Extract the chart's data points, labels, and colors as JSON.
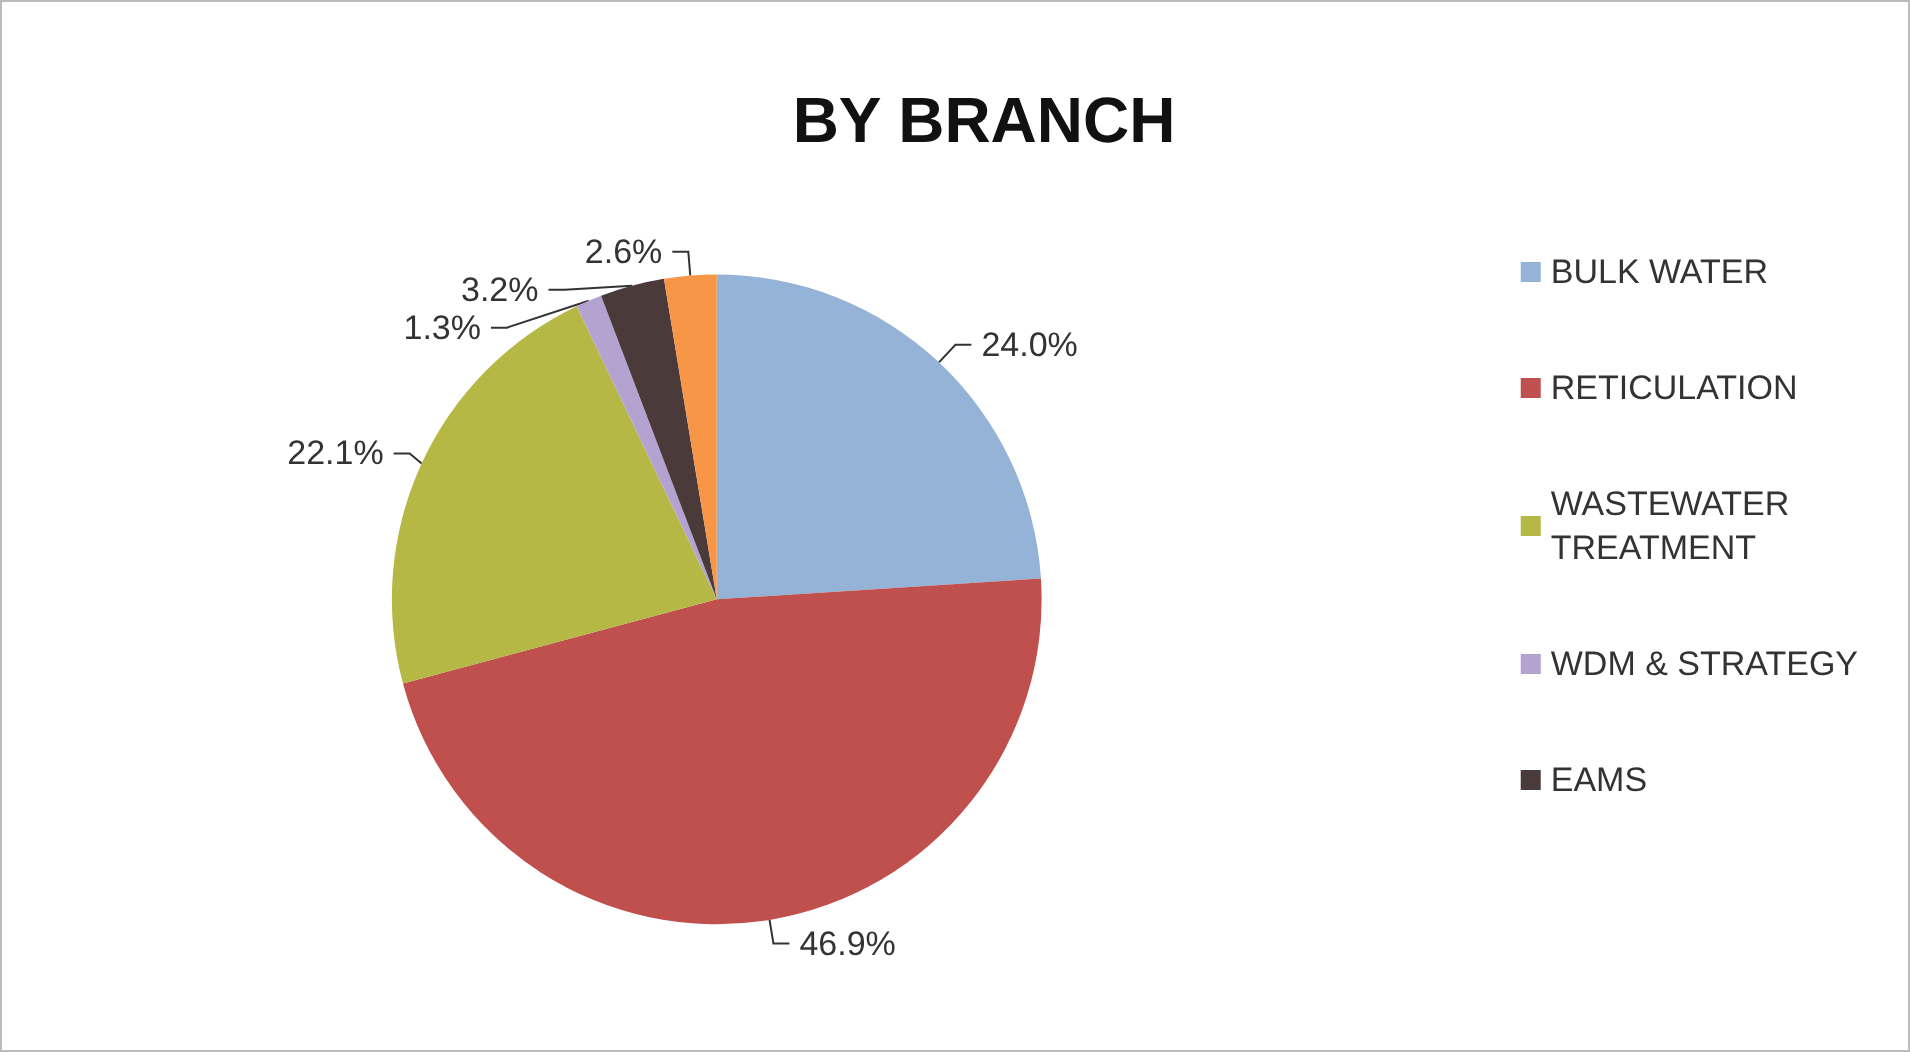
{
  "chart_data": {
    "type": "pie",
    "title": "BY BRANCH",
    "categories": [
      "BULK WATER",
      "RETICULATION",
      "WASTEWATER TREATMENT",
      "WDM & STRATEGY",
      "EAMS",
      null
    ],
    "values": [
      24.0,
      46.9,
      22.1,
      1.3,
      3.2,
      2.6
    ],
    "colors": [
      "#95b3d7",
      "#c0504d",
      "#b5b845",
      "#b4a2d0",
      "#4a3a3a",
      "#f79646"
    ],
    "value_labels": [
      "24.0%",
      "46.9%",
      "22.1%",
      "1.3%",
      "3.2%",
      "2.6%"
    ],
    "legend": "right"
  }
}
